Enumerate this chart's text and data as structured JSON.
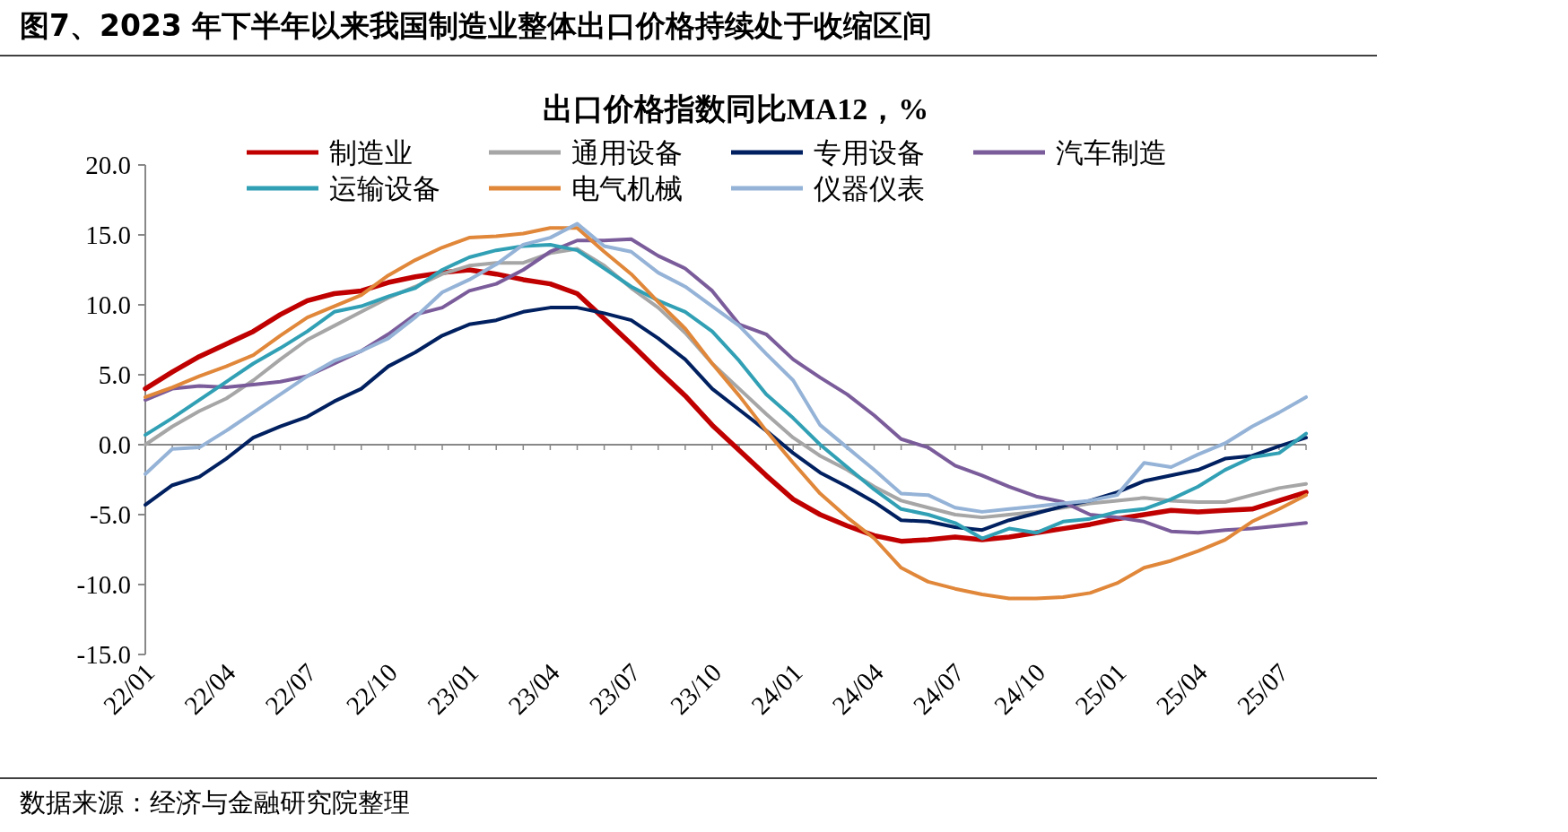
{
  "chart_data": {
    "type": "line",
    "title": "图7、2023 年下半年以来我国制造业整体出口价格持续处于收缩区间",
    "subtitle": "出口价格指数同比MA12，%",
    "categories": [
      "22/01",
      null,
      null,
      "22/04",
      null,
      null,
      "22/07",
      null,
      null,
      "22/10",
      null,
      null,
      "23/01",
      null,
      null,
      "23/04",
      null,
      null,
      "23/07",
      null,
      null,
      "23/10",
      null,
      null,
      "24/01",
      null,
      null,
      "24/04",
      null,
      null,
      "24/07",
      null,
      null,
      "24/10",
      null,
      null,
      "25/01",
      null,
      null,
      "25/04",
      null,
      null,
      "25/07",
      null
    ],
    "series": [
      {
        "name": "制造业",
        "color": "#c00000",
        "values": [
          4.0,
          5.2,
          6.3,
          7.2,
          8.1,
          9.3,
          10.3,
          10.8,
          11.0,
          11.6,
          12.0,
          12.3,
          12.5,
          12.2,
          11.8,
          11.5,
          10.8,
          9.0,
          7.2,
          5.3,
          3.5,
          1.4,
          -0.4,
          -2.2,
          -3.9,
          -5.0,
          -5.8,
          -6.5,
          -6.9,
          -6.8,
          -6.6,
          -6.8,
          -6.6,
          -6.3,
          -6.0,
          -5.7,
          -5.3,
          -5.0,
          -4.7,
          -4.8,
          -4.7,
          -4.6,
          -4.0,
          -3.4
        ]
      },
      {
        "name": "通用设备",
        "color": "#a6a6a6",
        "values": [
          0.0,
          1.3,
          2.4,
          3.3,
          4.6,
          6.1,
          7.5,
          8.5,
          9.5,
          10.5,
          11.3,
          12.2,
          12.8,
          13.0,
          13.0,
          13.7,
          14.0,
          12.8,
          11.2,
          9.8,
          8.0,
          5.8,
          4.0,
          2.2,
          0.5,
          -0.8,
          -1.8,
          -3.0,
          -4.0,
          -4.5,
          -5.0,
          -5.2,
          -5.0,
          -4.8,
          -4.5,
          -4.2,
          -4.0,
          -3.8,
          -4.0,
          -4.1,
          -4.1,
          -3.6,
          -3.1,
          -2.8
        ]
      },
      {
        "name": "专用设备",
        "color": "#002060",
        "values": [
          -4.3,
          -2.9,
          -2.3,
          -1.0,
          0.5,
          1.3,
          2.0,
          3.1,
          4.0,
          5.6,
          6.6,
          7.8,
          8.6,
          8.9,
          9.5,
          9.8,
          9.8,
          9.4,
          8.9,
          7.6,
          6.1,
          4.0,
          2.5,
          1.0,
          -0.6,
          -2.0,
          -3.0,
          -4.1,
          -5.4,
          -5.5,
          -5.9,
          -6.1,
          -5.4,
          -4.9,
          -4.4,
          -4.0,
          -3.4,
          -2.6,
          -2.2,
          -1.8,
          -1.0,
          -0.8,
          -0.1,
          0.5
        ]
      },
      {
        "name": "汽车制造",
        "color": "#7b5c9b",
        "values": [
          3.2,
          4.0,
          4.2,
          4.1,
          4.3,
          4.5,
          4.9,
          5.8,
          6.7,
          7.9,
          9.3,
          9.8,
          11.0,
          11.5,
          12.5,
          13.8,
          14.6,
          14.6,
          14.7,
          13.5,
          12.6,
          11.0,
          8.6,
          7.9,
          6.1,
          4.8,
          3.6,
          2.1,
          0.4,
          -0.2,
          -1.5,
          -2.2,
          -3.0,
          -3.7,
          -4.1,
          -5.0,
          -5.2,
          -5.5,
          -6.2,
          -6.3,
          -6.1,
          -6.0,
          -5.8,
          -5.6
        ]
      },
      {
        "name": "运输设备",
        "color": "#31a0b5",
        "values": [
          0.7,
          1.9,
          3.2,
          4.5,
          5.8,
          6.9,
          8.1,
          9.5,
          9.9,
          10.6,
          11.2,
          12.5,
          13.4,
          13.9,
          14.2,
          14.3,
          13.9,
          12.6,
          11.3,
          10.3,
          9.5,
          8.1,
          6.0,
          3.6,
          1.9,
          0.0,
          -1.6,
          -3.2,
          -4.6,
          -5.0,
          -5.6,
          -6.7,
          -6.0,
          -6.3,
          -5.5,
          -5.3,
          -4.8,
          -4.6,
          -3.9,
          -3.0,
          -1.8,
          -0.9,
          -0.6,
          0.8
        ]
      },
      {
        "name": "电气机械",
        "color": "#e0873a",
        "values": [
          3.4,
          4.1,
          4.9,
          5.6,
          6.4,
          7.8,
          9.1,
          9.9,
          10.7,
          12.1,
          13.2,
          14.1,
          14.8,
          14.9,
          15.1,
          15.5,
          15.5,
          13.8,
          12.2,
          10.2,
          8.3,
          5.8,
          3.5,
          1.0,
          -1.3,
          -3.5,
          -5.2,
          -6.7,
          -8.8,
          -9.8,
          -10.3,
          -10.7,
          -11.0,
          -11.0,
          -10.9,
          -10.6,
          -9.9,
          -8.8,
          -8.3,
          -7.6,
          -6.8,
          -5.5,
          -4.6,
          -3.6
        ]
      },
      {
        "name": "仪器仪表",
        "color": "#95b3d7",
        "values": [
          -2.1,
          -0.3,
          -0.2,
          1.0,
          2.3,
          3.6,
          4.9,
          6.0,
          6.7,
          7.6,
          9.1,
          10.9,
          11.8,
          12.9,
          14.3,
          14.8,
          15.8,
          14.2,
          13.8,
          12.3,
          11.3,
          9.9,
          8.5,
          6.5,
          4.6,
          1.4,
          -0.2,
          -1.8,
          -3.5,
          -3.6,
          -4.5,
          -4.8,
          -4.6,
          -4.4,
          -4.2,
          -4.0,
          -3.6,
          -1.3,
          -1.6,
          -0.7,
          0.1,
          1.3,
          2.3,
          3.4
        ]
      }
    ],
    "ylim": [
      -15,
      20
    ],
    "yticks": [
      {
        "value": -15,
        "label": "-15.0"
      },
      {
        "value": -10,
        "label": "-10.0"
      },
      {
        "value": -5,
        "label": "-5.0"
      },
      {
        "value": 0,
        "label": "0.0"
      },
      {
        "value": 5,
        "label": "5.0"
      },
      {
        "value": 10,
        "label": "10.0"
      },
      {
        "value": 15,
        "label": "15.0"
      },
      {
        "value": 20,
        "label": "20.0"
      }
    ],
    "ref_lines": [
      {
        "axis": "y",
        "value": 0,
        "color": "#888888",
        "line_style": "solid"
      }
    ],
    "legend": "top",
    "grid": false,
    "marker": "none",
    "line_style": "solid",
    "annotations": [
      "数据来源：经济与金融研究院整理"
    ]
  }
}
